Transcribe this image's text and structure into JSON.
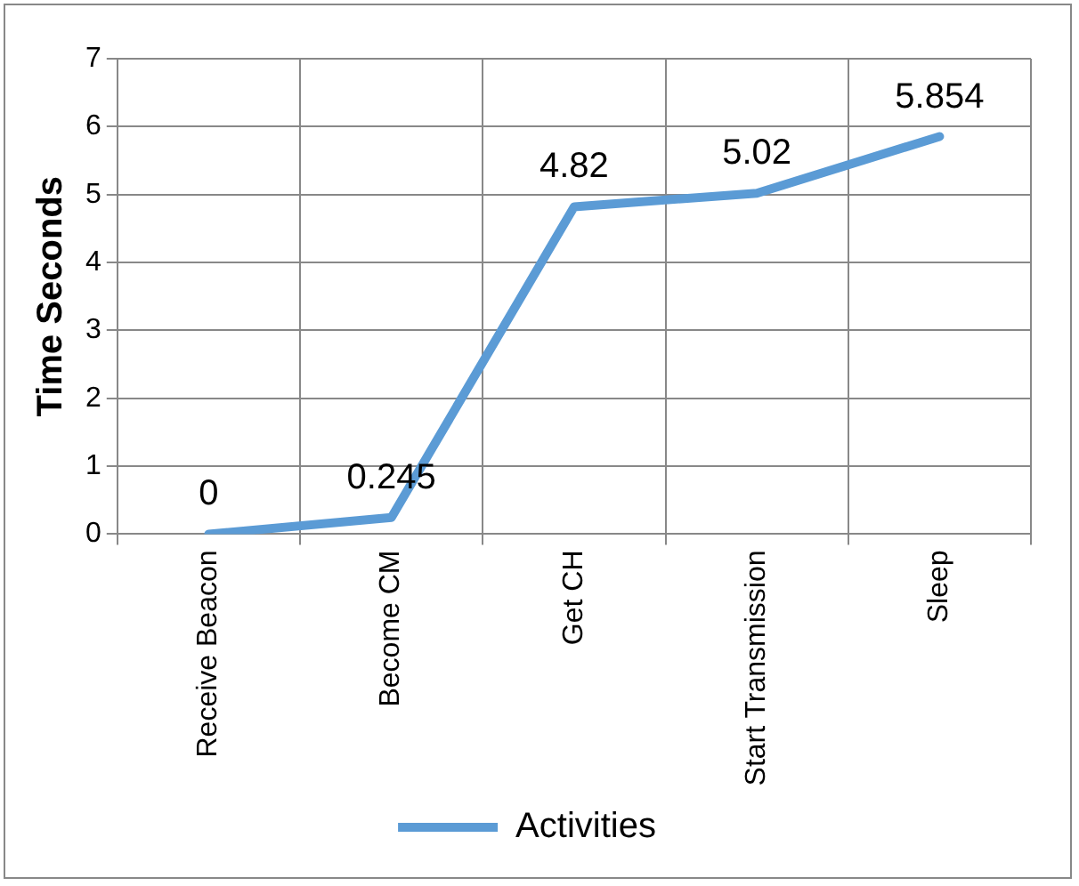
{
  "chart_data": {
    "type": "line",
    "ylabel": "Time Seconds",
    "categories": [
      "Receive Beacon",
      "Become CM",
      "Get CH",
      "Start Transmission",
      "Sleep"
    ],
    "series": [
      {
        "name": "Activities",
        "color": "#5b9bd5",
        "values": [
          0,
          0.245,
          4.82,
          5.02,
          5.854
        ]
      }
    ],
    "ylim": [
      0,
      7
    ],
    "yticks": [
      0,
      1,
      2,
      3,
      4,
      5,
      6,
      7
    ],
    "grid": true,
    "legend": "bottom",
    "marker": "none",
    "line_style": "solid",
    "data_labels": true
  }
}
